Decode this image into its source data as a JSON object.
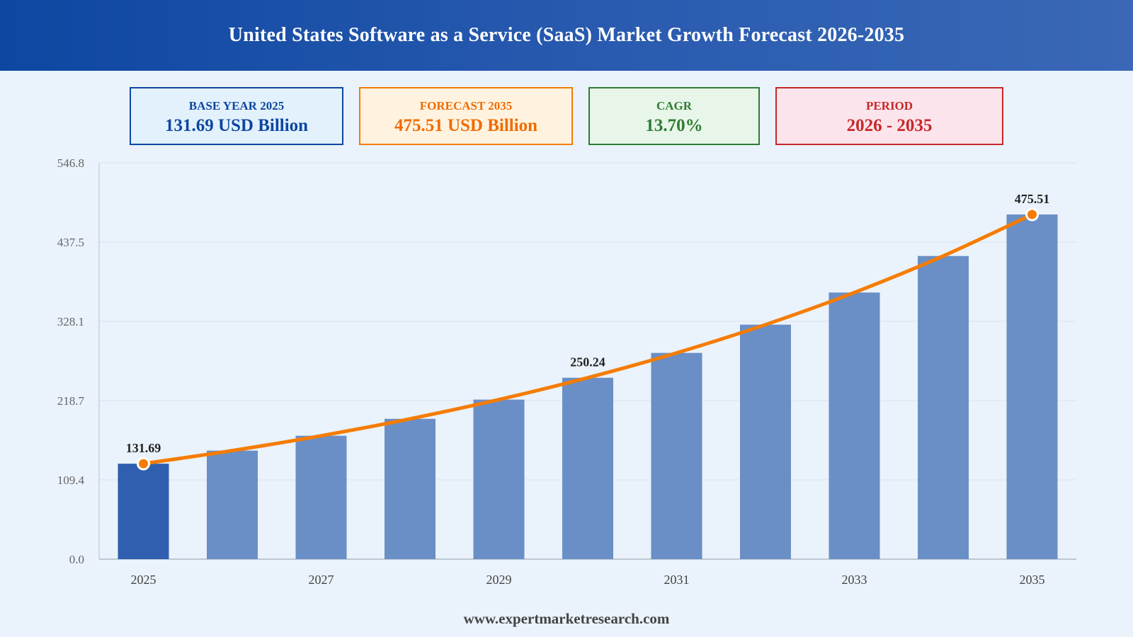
{
  "header": {
    "title": "United States Software as a Service (SaaS) Market Growth Forecast 2026-2035"
  },
  "cards": {
    "base": {
      "label": "BASE YEAR 2025",
      "value": "131.69 USD Billion"
    },
    "forecast": {
      "label": "FORECAST 2035",
      "value": "475.51 USD Billion"
    },
    "cagr": {
      "label": "CAGR",
      "value": "13.70%"
    },
    "period": {
      "label": "PERIOD",
      "value": "2026 - 2035"
    }
  },
  "footer": {
    "source": "www.expertmarketresearch.com"
  },
  "colors": {
    "header_start": "#0d47a1",
    "bar_base": "#2f5fae",
    "bar_forecast": "#6a8fc6",
    "trend_line": "#f57c00"
  },
  "chart_data": {
    "type": "bar",
    "categories": [
      "2025",
      "2026",
      "2027",
      "2028",
      "2029",
      "2030",
      "2031",
      "2032",
      "2033",
      "2034",
      "2035"
    ],
    "x_tick_labels": [
      "2025",
      "2027",
      "2029",
      "2031",
      "2033",
      "2035"
    ],
    "values": [
      131.69,
      149.73,
      170.24,
      193.56,
      220.08,
      250.24,
      284.52,
      323.5,
      367.82,
      418.21,
      475.51
    ],
    "y_ticks": [
      "0.0",
      "109.4",
      "218.7",
      "328.1",
      "437.5",
      "546.8"
    ],
    "ylim": [
      0,
      546.8
    ],
    "data_labels": [
      {
        "category": "2025",
        "text": "131.69"
      },
      {
        "category": "2030",
        "text": "250.24"
      },
      {
        "category": "2035",
        "text": "475.51"
      }
    ],
    "overlay_line": {
      "type": "line",
      "values_same_as_bars": true
    },
    "grid": true,
    "legend": "none"
  }
}
